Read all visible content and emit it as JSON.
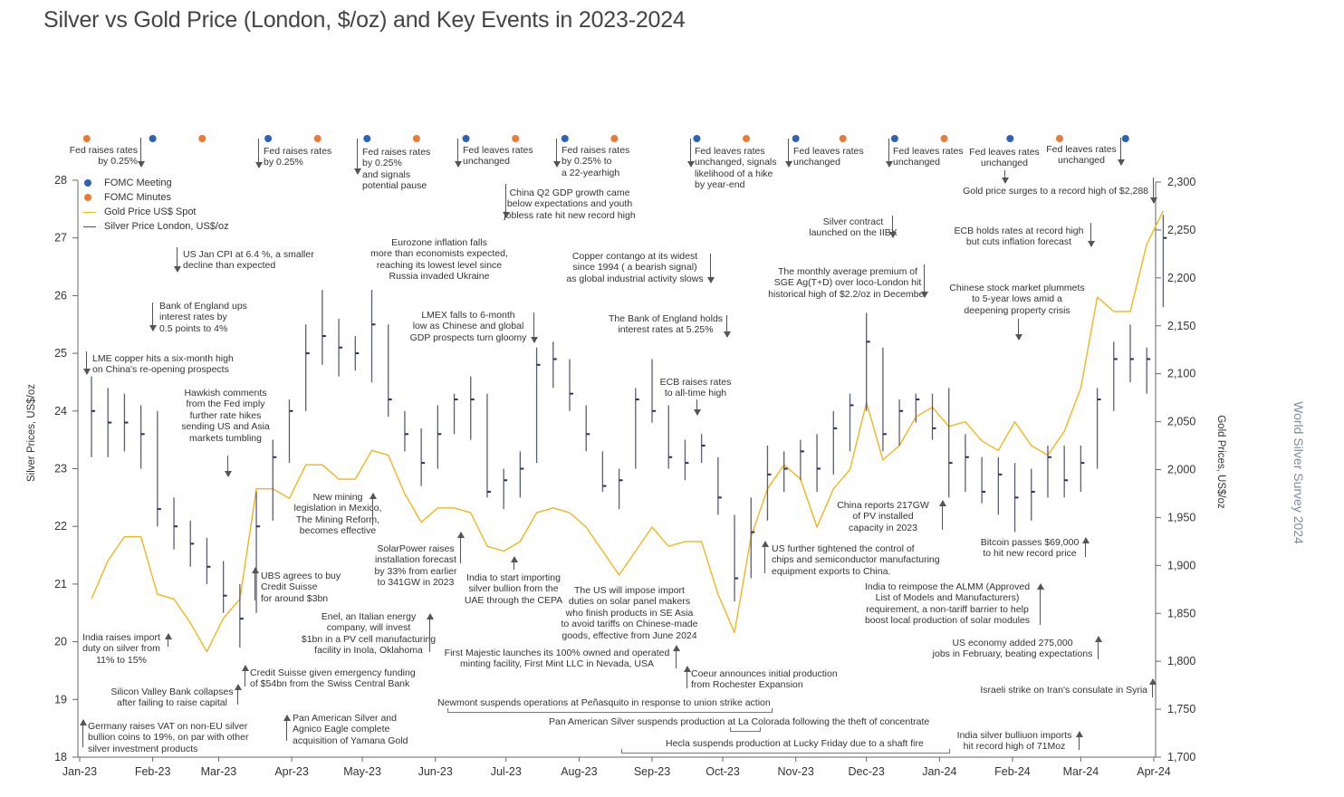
{
  "chart_data": {
    "type": "line",
    "title": "Silver vs Gold Price (London, $/oz) and Key Events in 2023-2024",
    "ylabel": "Silver Prices, US$/oz",
    "y2label": "Gold Prices, US$/oz",
    "ylim": [
      18,
      28
    ],
    "y2lim": [
      1700,
      2300
    ],
    "yticks": [
      "28",
      "27",
      "26",
      "25",
      "24",
      "23",
      "22",
      "21",
      "20",
      "19",
      "18"
    ],
    "y2ticks": [
      "2,300",
      "2,250",
      "2,200",
      "2,150",
      "2,100",
      "2,050",
      "2,000",
      "1,950",
      "1,900",
      "1,850",
      "1,800",
      "1,750",
      "1,700"
    ],
    "xticks": [
      "Jan-23",
      "Feb-23",
      "Mar-23",
      "Apr-23",
      "May-23",
      "Jun-23",
      "Jul-23",
      "Aug-23",
      "Sep-23",
      "Oct-23",
      "Nov-23",
      "Dec-23",
      "Jan-24",
      "Feb-24",
      "Mar-24",
      "Apr-24"
    ],
    "grid": false,
    "legend_position": "top-left",
    "legend": [
      "FOMC Meeting",
      "FOMC Minutes",
      "Gold Price US$ Spot",
      "Silver Price London, US$/oz"
    ],
    "colors": {
      "fomc_meeting": "#2e62b8",
      "fomc_minutes": "#ec7a35",
      "gold": "#f2b51c",
      "silver": "#4b4f6c"
    },
    "dates": [
      "2023-01-06",
      "2023-01-13",
      "2023-01-20",
      "2023-01-27",
      "2023-02-03",
      "2023-02-10",
      "2023-02-17",
      "2023-02-24",
      "2023-03-03",
      "2023-03-10",
      "2023-03-17",
      "2023-03-24",
      "2023-03-31",
      "2023-04-07",
      "2023-04-14",
      "2023-04-21",
      "2023-04-28",
      "2023-05-05",
      "2023-05-12",
      "2023-05-19",
      "2023-05-26",
      "2023-06-02",
      "2023-06-09",
      "2023-06-16",
      "2023-06-23",
      "2023-06-30",
      "2023-07-07",
      "2023-07-14",
      "2023-07-21",
      "2023-07-28",
      "2023-08-04",
      "2023-08-11",
      "2023-08-18",
      "2023-08-25",
      "2023-09-01",
      "2023-09-08",
      "2023-09-15",
      "2023-09-22",
      "2023-09-29",
      "2023-10-06",
      "2023-10-13",
      "2023-10-20",
      "2023-10-27",
      "2023-11-03",
      "2023-11-10",
      "2023-11-17",
      "2023-11-24",
      "2023-12-01",
      "2023-12-08",
      "2023-12-15",
      "2023-12-22",
      "2023-12-29",
      "2024-01-05",
      "2024-01-12",
      "2024-01-19",
      "2024-01-26",
      "2024-02-02",
      "2024-02-09",
      "2024-02-16",
      "2024-02-23",
      "2024-03-01",
      "2024-03-08",
      "2024-03-15",
      "2024-03-22",
      "2024-03-29",
      "2024-04-05"
    ],
    "series": [
      {
        "name": "Gold Price US$ Spot",
        "axis": "right",
        "values": [
          1865,
          1905,
          1930,
          1930,
          1870,
          1865,
          1840,
          1810,
          1845,
          1865,
          1980,
          1980,
          1970,
          2005,
          2005,
          1990,
          1990,
          2020,
          2015,
          1975,
          1945,
          1960,
          1960,
          1955,
          1920,
          1915,
          1925,
          1955,
          1960,
          1955,
          1940,
          1915,
          1890,
          1915,
          1940,
          1920,
          1925,
          1925,
          1870,
          1830,
          1930,
          1980,
          2005,
          1990,
          1940,
          1980,
          2000,
          2070,
          2010,
          2025,
          2055,
          2065,
          2045,
          2050,
          2030,
          2020,
          2050,
          2025,
          2015,
          2040,
          2085,
          2180,
          2165,
          2165,
          2235,
          2270
        ]
      },
      {
        "name": "Silver Price London, US$/oz",
        "axis": "left",
        "close": [
          24.0,
          23.8,
          23.8,
          23.6,
          22.3,
          22.0,
          21.7,
          21.3,
          20.8,
          20.4,
          22.0,
          23.2,
          24.0,
          25.0,
          25.3,
          25.1,
          25.0,
          25.5,
          24.2,
          23.6,
          23.1,
          23.6,
          24.2,
          24.2,
          22.6,
          22.8,
          23.0,
          24.8,
          24.9,
          24.3,
          23.6,
          22.7,
          22.8,
          24.2,
          24.0,
          23.2,
          23.1,
          23.4,
          22.5,
          21.1,
          21.9,
          22.9,
          23.0,
          23.3,
          23.0,
          23.7,
          24.1,
          25.2,
          23.6,
          24.0,
          24.2,
          23.7,
          23.1,
          23.2,
          22.6,
          22.9,
          22.5,
          22.6,
          23.2,
          22.8,
          23.1,
          24.2,
          24.9,
          24.9,
          24.9,
          27.0
        ],
        "high": [
          24.6,
          24.4,
          24.3,
          24.1,
          24.0,
          22.5,
          22.1,
          21.8,
          21.4,
          21.0,
          22.6,
          23.5,
          24.2,
          25.5,
          26.1,
          25.6,
          25.3,
          26.1,
          25.5,
          24.0,
          23.7,
          24.1,
          24.3,
          24.6,
          24.3,
          23.0,
          23.3,
          25.1,
          25.2,
          24.9,
          24.1,
          23.3,
          23.0,
          24.4,
          24.9,
          24.1,
          23.5,
          23.6,
          23.2,
          22.2,
          22.5,
          23.4,
          23.3,
          23.5,
          23.6,
          24.0,
          24.3,
          25.7,
          25.1,
          24.2,
          24.3,
          24.3,
          24.4,
          23.6,
          23.2,
          23.2,
          23.1,
          23.0,
          23.4,
          23.4,
          23.4,
          24.4,
          25.2,
          25.5,
          25.1,
          27.4
        ],
        "low": [
          23.2,
          23.2,
          23.3,
          23.0,
          22.0,
          21.6,
          21.3,
          21.0,
          20.5,
          19.9,
          20.5,
          22.1,
          23.1,
          24.0,
          24.8,
          24.6,
          24.7,
          24.5,
          23.9,
          23.3,
          22.7,
          23.0,
          23.6,
          23.5,
          22.5,
          22.3,
          22.5,
          23.1,
          24.4,
          24.0,
          23.3,
          22.6,
          22.3,
          23.0,
          23.8,
          23.0,
          22.8,
          23.1,
          22.2,
          20.7,
          21.1,
          22.1,
          22.6,
          22.8,
          22.6,
          22.9,
          23.3,
          24.0,
          23.3,
          23.4,
          23.8,
          23.5,
          22.5,
          22.6,
          22.4,
          22.2,
          21.9,
          22.1,
          22.5,
          22.5,
          22.6,
          23.0,
          24.0,
          24.5,
          24.3,
          25.8
        ]
      }
    ],
    "fomc_meetings": [
      "2023-02-01",
      "2023-03-22",
      "2023-05-03",
      "2023-06-14",
      "2023-07-26",
      "2023-09-20",
      "2023-11-01",
      "2023-12-13",
      "2024-01-31",
      "2024-03-20"
    ],
    "fomc_minutes": [
      "2023-01-04",
      "2023-02-22",
      "2023-04-12",
      "2023-05-24",
      "2023-07-05",
      "2023-08-16",
      "2023-10-11",
      "2023-11-21",
      "2024-01-03",
      "2024-02-21"
    ]
  },
  "side_label": "World Silver Survey 2024",
  "annotations": [
    "Fed raises rates\nby 0.25%",
    "Fed raises rates\nby 0.25%",
    "Fed raises rates\nby 0.25%\nand signals\npotential pause",
    "Fed leaves rates\nunchanged",
    "Fed raises rates\nby 0.25% to\na 22-yearhigh",
    "Fed leaves rates\nunchanged, signals\nlikelihood of a hike\nby year-end",
    "Fed leaves rates\nunchanged",
    "Fed leaves rates\nunchanged",
    "Fed leaves rates\nunchanged",
    "Fed leaves rates\nunchanged",
    "Gold price surges to a record high of $2,288",
    "China Q2 GDP growth came\nbelow expectations and youth\njobless rate hit new record high",
    "Silver contract\nlaunched on the IIBX",
    "ECB holds rates at record high\nbut cuts inflation forecast",
    "US Jan CPI at 6.4 %, a smaller\ndecline than expected",
    "Eurozone inflation falls\nmore than economists expected,\nreaching its lowest level since\nRussia invaded Ukraine",
    "Copper contango at its widest\nsince 1994 ( a bearish signal)\nas global industrial activity slows",
    "The monthly average premium of\nSGE Ag(T+D) over loco-London hit\nhistorical high of $2.2/oz in December",
    "Chinese stock market plummets\nto 5-year lows amid a\ndeepening property crisis",
    "Bank of England ups\ninterest rates by\n0.5 points to 4%",
    "LMEX falls to 6-month\nlow as Chinese and global\nGDP prospects turn gloomy",
    "The Bank of England holds\ninterest rates at 5.25%",
    "LME copper hits a six-month high\non China's re-opening prospects",
    "ECB raises rates\nto all-time high",
    "Hawkish comments\nfrom the Fed imply\nfurther rate hikes\nsending US and Asia\nmarkets tumbling",
    "New mining\nlegislation in Mexico,\nThe Mining Reform,\nbecomes effective",
    "China reports 217GW\nof PV installed\ncapacity in 2023",
    "SolarPower raises\ninstallation forecast\nby 33% from earlier\nto 341GW in 2023",
    "Bitcoin passes $69,000\nto hit new record price",
    "US further tightened the control of\nchips and semiconductor manufacturing\nequipment exports to China.",
    "UBS agrees to buy\nCredit Suisse\nfor around $3bn",
    "India to start importing\nsilver bullion from the\nUAE through the CEPA",
    "India to reimpose the ALMM (Approved\nList of Models and Manufacturers)\nrequirement,  a non-tariff barrier to help\nboost local production of solar modules",
    "The US will impose import\nduties on solar panel makers\nwho finish products in SE Asia\nto avoid tariffs on Chinese-made\ngoods, effective from June 2024",
    "Enel, an Italian energy\ncompany, will invest\n$1bn in a PV cell manufacturing\nfacility in Inola, Oklahoma",
    "India raises import\nduty on silver from\n11% to 15%",
    "US economy added 275,000\njobs in February, beating expectations",
    "First Majestic launches its 100% owned and operated\nminting facility, First Mint LLC in Nevada, USA",
    "Credit Suisse given emergency funding\nof $54bn from the Swiss Central Bank",
    "Coeur announces initial production\nfrom Rochester Expansion",
    "Silicon Valley Bank collapses\nafter failing to raise capital",
    "Israeli strike on Iran's consulate in Syria",
    "Newmont suspends operations at Peñasquito in response to union strike action",
    "Pan American Silver and\nAgnico Eagle complete\nacquisition of Yamana Gold",
    "Pan American Silver suspends production at La Colorada following the theft of concentrate",
    "Germany raises VAT on non-EU silver\nbullion coins to 19%, on par with other\nsilver investment products",
    "India silver bulliuon imports\nhit record high of 71Moz",
    "Hecla suspends production at Lucky Friday due to a shaft fire"
  ]
}
